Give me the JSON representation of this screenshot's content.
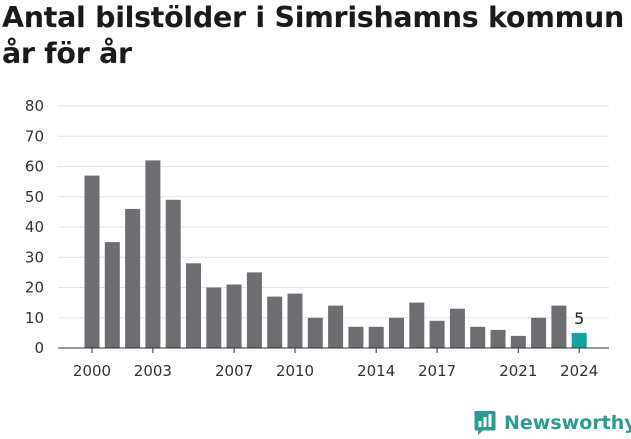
{
  "title": "Antal bilstölder i Simrishamns kommun år för år",
  "brand": {
    "name": "Newsworthy",
    "color": "#2a9d8f",
    "icon": "newsworthy-logo-icon"
  },
  "chart_data": {
    "type": "bar",
    "title": "Antal bilstölder i Simrishamns kommun år för år",
    "xlabel": "",
    "ylabel": "",
    "ylim": [
      0,
      80
    ],
    "yticks": [
      "0",
      "10",
      "20",
      "30",
      "40",
      "50",
      "60",
      "70",
      "80"
    ],
    "xticks": [
      "2000",
      "2003",
      "2007",
      "2010",
      "2014",
      "2017",
      "2021",
      "2024"
    ],
    "grid": true,
    "categories": [
      2000,
      2001,
      2002,
      2003,
      2004,
      2005,
      2006,
      2007,
      2008,
      2009,
      2010,
      2011,
      2012,
      2013,
      2014,
      2015,
      2016,
      2017,
      2018,
      2019,
      2020,
      2021,
      2022,
      2023,
      2024
    ],
    "values": [
      57,
      35,
      46,
      62,
      49,
      28,
      20,
      21,
      25,
      17,
      18,
      10,
      14,
      7,
      7,
      10,
      15,
      9,
      13,
      7,
      6,
      4,
      10,
      14,
      5
    ],
    "bar_color": "#6e6d72",
    "highlight_color": "#12a39a",
    "highlight_index": 24,
    "highlight_label": "5"
  }
}
